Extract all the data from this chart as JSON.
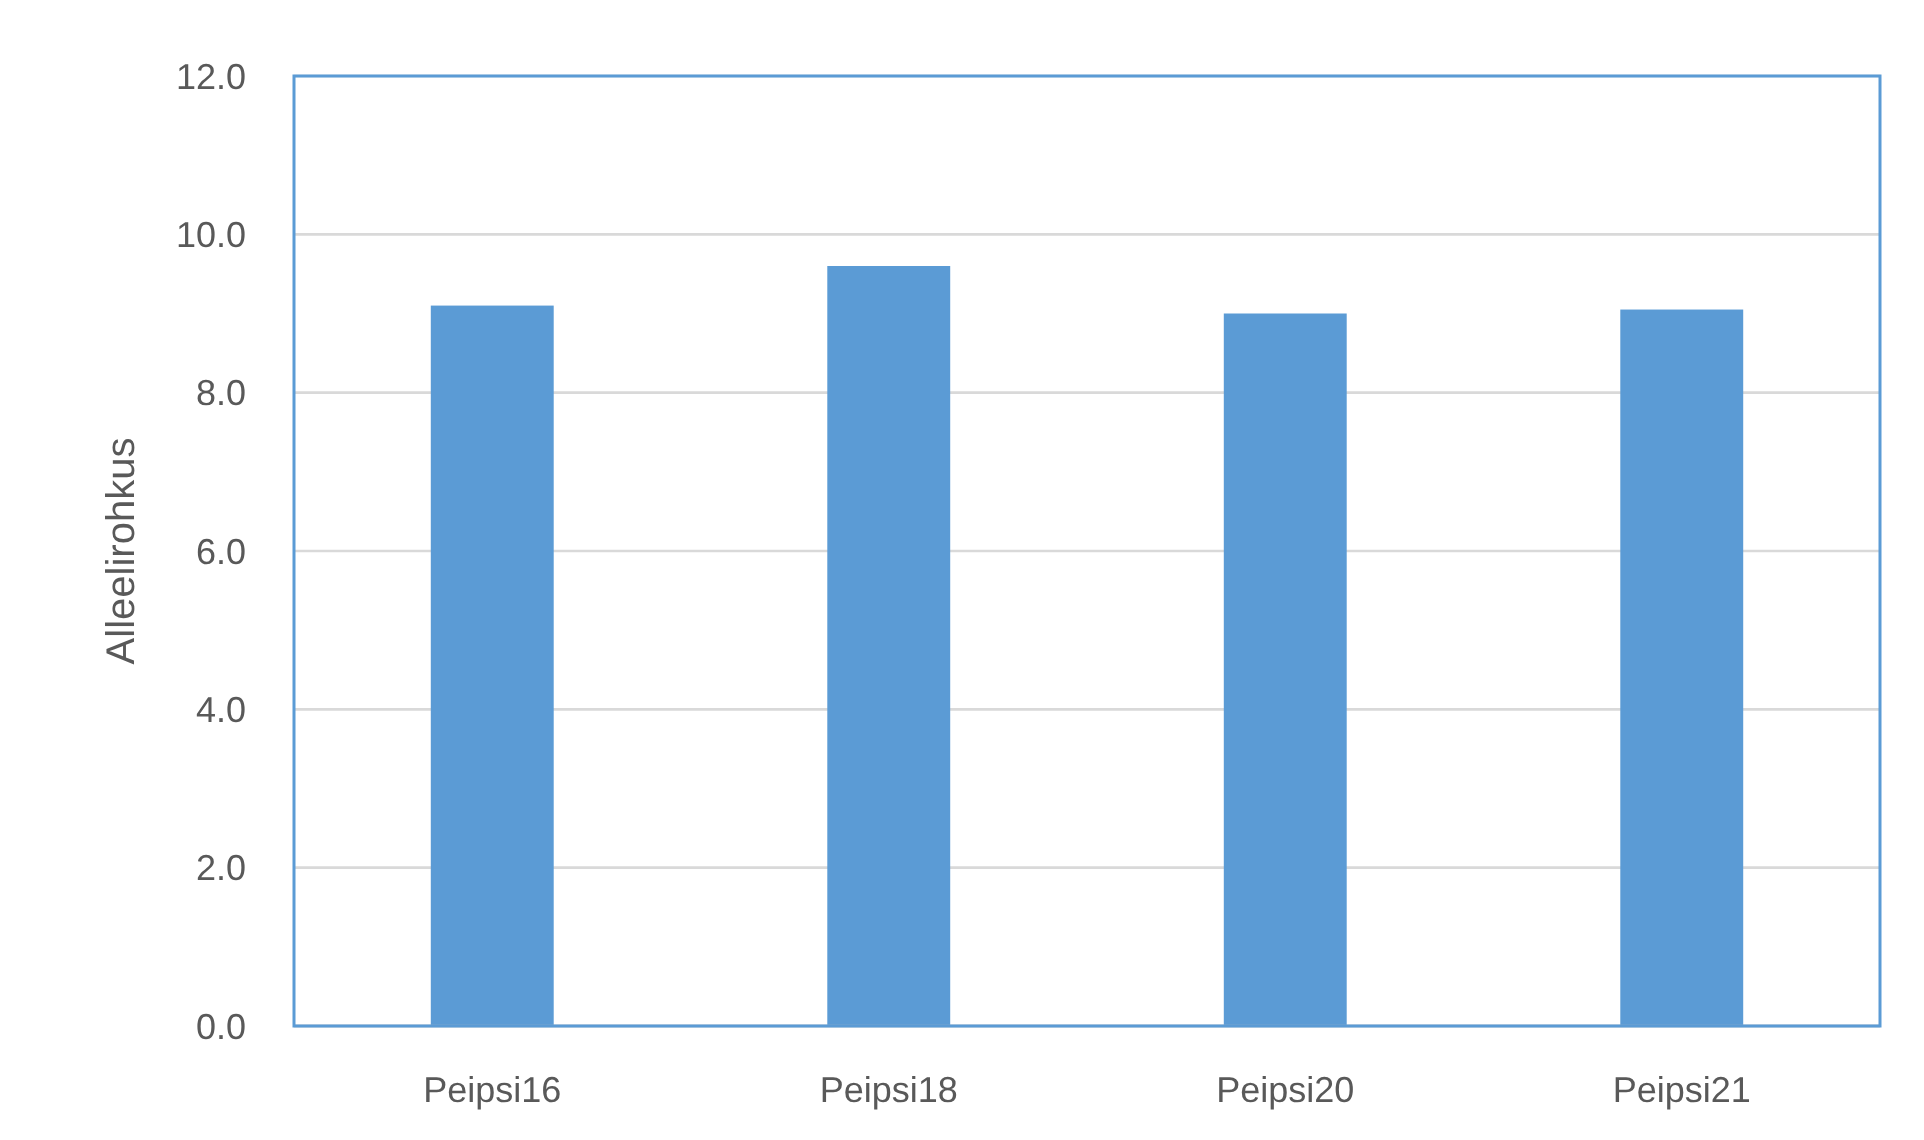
{
  "chart_data": {
    "type": "bar",
    "ylabel": "Alleelirohkus",
    "categories": [
      "Peipsi16",
      "Peipsi18",
      "Peipsi20",
      "Peipsi21"
    ],
    "values": [
      9.1,
      9.6,
      9.0,
      9.05
    ],
    "color": "#5b9bd5",
    "ylim": [
      0,
      12
    ],
    "yticks": [
      {
        "value": 0,
        "label": "0.0"
      },
      {
        "value": 2,
        "label": "2.0"
      },
      {
        "value": 4,
        "label": "4.0"
      },
      {
        "value": 6,
        "label": "6.0"
      },
      {
        "value": 8,
        "label": "8.0"
      },
      {
        "value": 10,
        "label": "10.0"
      },
      {
        "value": 12,
        "label": "12.0"
      }
    ],
    "grid": "y"
  }
}
